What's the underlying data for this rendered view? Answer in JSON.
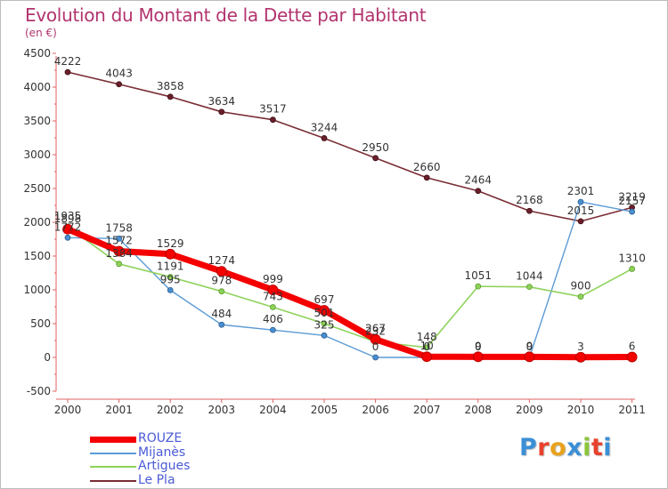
{
  "title": "Evolution du Montant de la Dette par Habitant",
  "subtitle": "(en €)",
  "brand": {
    "text": "Proxiti",
    "letter_colors": [
      "#3a8fd6",
      "#e8412c",
      "#e8a21c",
      "#3a8fd6",
      "#8cc43c",
      "#e8412c",
      "#3a8fd6"
    ]
  },
  "chart_data": {
    "type": "line",
    "x": [
      "2000",
      "2001",
      "2002",
      "2003",
      "2004",
      "2005",
      "2006",
      "2007",
      "2008",
      "2009",
      "2010",
      "2011"
    ],
    "ylim": [
      -500,
      4500
    ],
    "yticks": [
      "-500",
      "0",
      "500",
      "1000",
      "1500",
      "2000",
      "2500",
      "3000",
      "3500",
      "4000",
      "4500"
    ],
    "ytick_values": [
      -500,
      0,
      500,
      1000,
      1500,
      2000,
      2500,
      3000,
      3500,
      4000,
      4500
    ],
    "grid": false,
    "legend_position": "bottom-left",
    "series": [
      {
        "name": "Le Pla",
        "color": "#7a2c35",
        "values": [
          4222,
          4043,
          3858,
          3634,
          3517,
          3244,
          2950,
          2660,
          2464,
          2168,
          2015,
          2219
        ],
        "labels": [
          "4222",
          "4043",
          "3858",
          "3634",
          "3517",
          "3244",
          "2950",
          "2660",
          "2464",
          "2168",
          "2015",
          "2219"
        ]
      },
      {
        "name": "Mijanès",
        "color": "#5b9bd5",
        "values": [
          1772,
          1758,
          995,
          484,
          406,
          325,
          0,
          0,
          0,
          0,
          2301,
          2157
        ],
        "labels": [
          "1772",
          "1758",
          "995",
          "484",
          "406",
          "325",
          "0",
          "0",
          "0",
          "0",
          "2301",
          "2157"
        ]
      },
      {
        "name": "Artigues",
        "color": "#8ed25a",
        "values": [
          1935,
          1384,
          1191,
          978,
          743,
          501,
          232,
          148,
          1051,
          1044,
          900,
          1310
        ],
        "labels": [
          "1935",
          "1384",
          "1191",
          "978",
          "743",
          "501",
          "232",
          "148",
          "1051",
          "1044",
          "900",
          "1310"
        ]
      },
      {
        "name": "ROUZE",
        "color": "#f40000",
        "values": [
          1898,
          1572,
          1529,
          1274,
          999,
          697,
          267,
          10,
          9,
          9,
          3,
          6
        ],
        "labels": [
          "1898",
          "1572",
          "1529",
          "1274",
          "999",
          "697",
          "267",
          "10",
          "9",
          "9",
          "3",
          "6"
        ]
      }
    ],
    "legend_order": [
      "ROUZE",
      "Mijanès",
      "Artigues",
      "Le Pla"
    ]
  }
}
